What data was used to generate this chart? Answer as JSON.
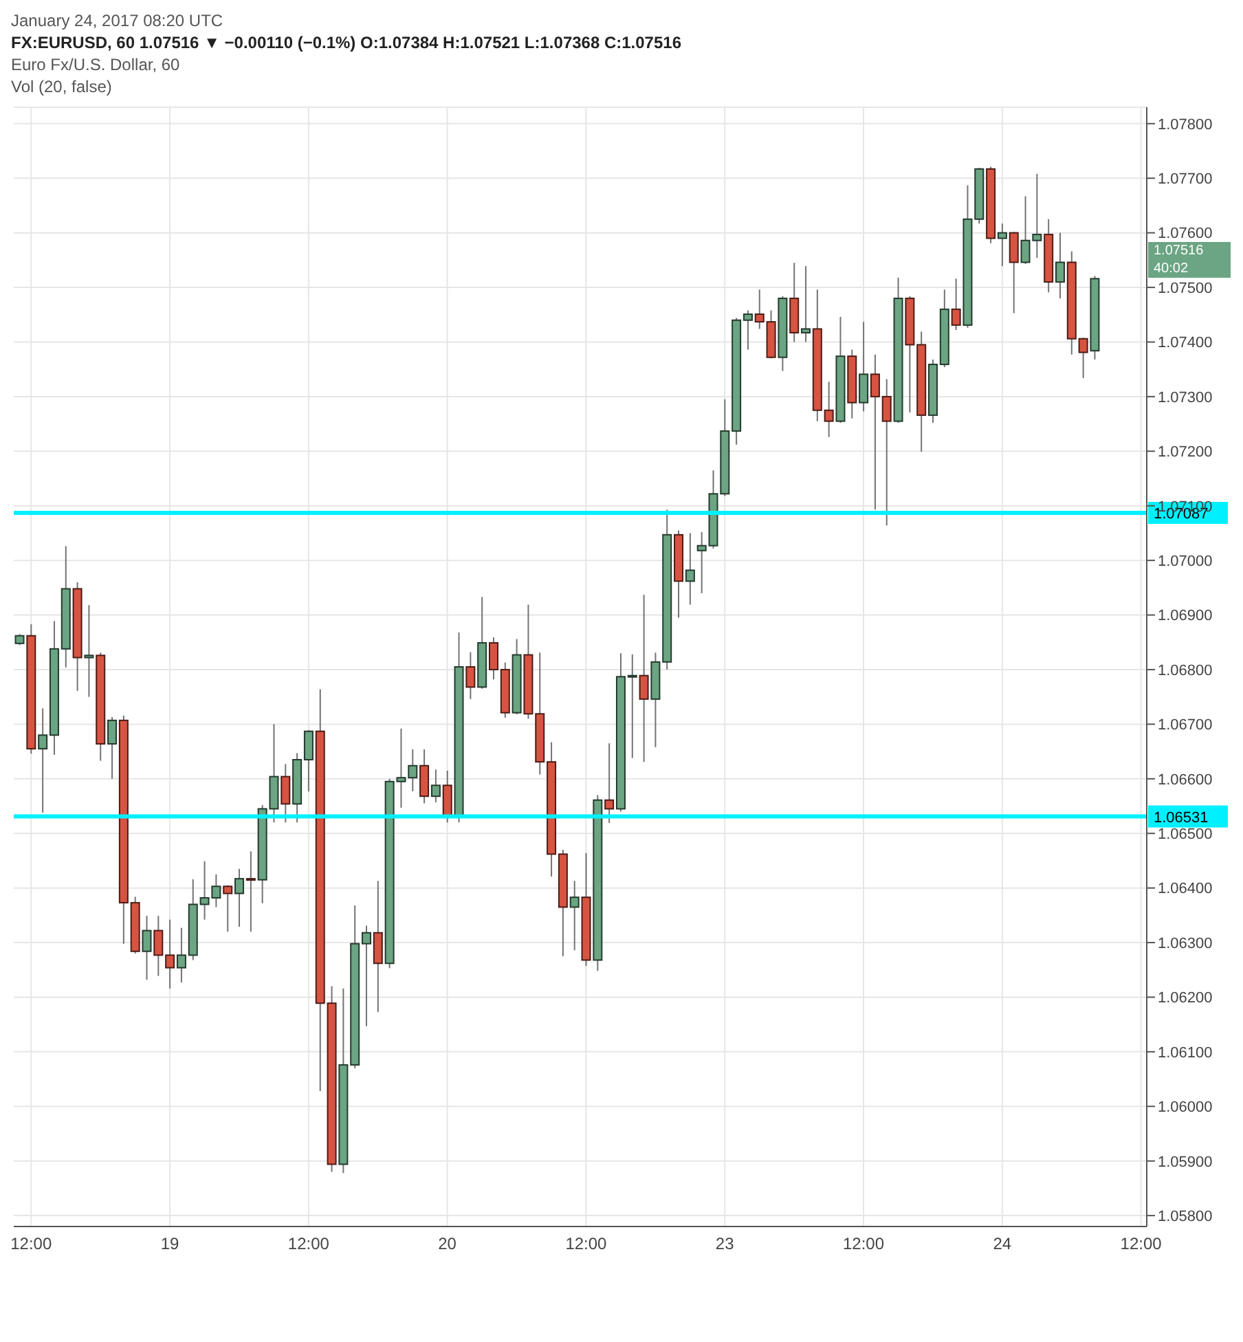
{
  "chart_data": {
    "type": "candlestick",
    "title": "FX:EURUSD, 60 1.07516 ▼ −0.00110 (−0.1%) O:1.07384 H:1.07521 L:1.07368 C:1.07516",
    "subtitle": "Euro Fx/U.S. Dollar, 60",
    "annotations": [
      "January 24, 2017 08:20 UTC",
      "Vol (20, false)",
      "1.07516",
      "40:02"
    ],
    "categories": [
      null,
      "12:00",
      null,
      null,
      null,
      null,
      null,
      null,
      null,
      null,
      null,
      null,
      null,
      "19",
      null,
      null,
      null,
      null,
      null,
      null,
      null,
      null,
      null,
      null,
      null,
      "12:00",
      null,
      null,
      null,
      null,
      null,
      null,
      null,
      null,
      null,
      null,
      null,
      "20",
      null,
      null,
      null,
      null,
      null,
      null,
      null,
      null,
      null,
      null,
      null,
      "12:00",
      null,
      null,
      null,
      null,
      null,
      null,
      null,
      null,
      null,
      null,
      null,
      "23",
      null,
      null,
      null,
      null,
      null,
      null,
      null,
      null,
      null,
      null,
      null,
      "12:00",
      null,
      null,
      null,
      null,
      null,
      null,
      null,
      null,
      null,
      null,
      null,
      "24",
      null,
      null,
      null,
      null,
      null,
      null,
      null,
      null,
      null,
      null,
      null,
      "12:00"
    ],
    "ohlc": [
      [
        1.06848,
        1.06865,
        1.06845,
        1.06862
      ],
      [
        1.06862,
        1.06883,
        1.06646,
        1.06655
      ],
      [
        1.06655,
        1.06729,
        1.06538,
        1.0668
      ],
      [
        1.0668,
        1.06889,
        1.06644,
        1.06838
      ],
      [
        1.06838,
        1.07026,
        1.06804,
        1.06948
      ],
      [
        1.06948,
        1.0696,
        1.06761,
        1.06822
      ],
      [
        1.06822,
        1.06918,
        1.0675,
        1.06826
      ],
      [
        1.06826,
        1.06831,
        1.06633,
        1.06664
      ],
      [
        1.06664,
        1.06713,
        1.066,
        1.06707
      ],
      [
        1.06707,
        1.06716,
        1.06298,
        1.06373
      ],
      [
        1.06373,
        1.06384,
        1.0628,
        1.06284
      ],
      [
        1.06284,
        1.06349,
        1.06232,
        1.06322
      ],
      [
        1.06322,
        1.06349,
        1.06239,
        1.06277
      ],
      [
        1.06277,
        1.06342,
        1.06216,
        1.06254
      ],
      [
        1.06254,
        1.06327,
        1.06227,
        1.06277
      ],
      [
        1.06277,
        1.06416,
        1.06268,
        1.0637
      ],
      [
        1.0637,
        1.06449,
        1.06342,
        1.06382
      ],
      [
        1.06382,
        1.06425,
        1.06365,
        1.06403
      ],
      [
        1.06403,
        1.06405,
        1.0632,
        1.0639
      ],
      [
        1.0639,
        1.06435,
        1.06329,
        1.06417
      ],
      [
        1.06417,
        1.06467,
        1.0632,
        1.06415
      ],
      [
        1.06415,
        1.06552,
        1.06372,
        1.06545
      ],
      [
        1.06545,
        1.067,
        1.0652,
        1.06604
      ],
      [
        1.06604,
        1.06627,
        1.0652,
        1.06554
      ],
      [
        1.06554,
        1.06647,
        1.0652,
        1.06635
      ],
      [
        1.06635,
        1.06689,
        1.06577,
        1.06687
      ],
      [
        1.06687,
        1.06764,
        1.06028,
        1.06189
      ],
      [
        1.06189,
        1.0622,
        1.0588,
        1.05894
      ],
      [
        1.05894,
        1.06216,
        1.05878,
        1.06076
      ],
      [
        1.06076,
        1.06368,
        1.0607,
        1.06298
      ],
      [
        1.06298,
        1.06331,
        1.06147,
        1.06318
      ],
      [
        1.06318,
        1.06413,
        1.06173,
        1.06262
      ],
      [
        1.06262,
        1.066,
        1.06253,
        1.06595
      ],
      [
        1.06595,
        1.06692,
        1.06547,
        1.06602
      ],
      [
        1.06602,
        1.06654,
        1.06577,
        1.06624
      ],
      [
        1.06624,
        1.06654,
        1.06555,
        1.06568
      ],
      [
        1.06568,
        1.06617,
        1.06557,
        1.06588
      ],
      [
        1.06588,
        1.06615,
        1.0652,
        1.06532
      ],
      [
        1.06532,
        1.06868,
        1.0652,
        1.06805
      ],
      [
        1.06805,
        1.06832,
        1.06746,
        1.06768
      ],
      [
        1.06768,
        1.06933,
        1.06765,
        1.06849
      ],
      [
        1.06849,
        1.06859,
        1.06782,
        1.068
      ],
      [
        1.068,
        1.06813,
        1.06712,
        1.06721
      ],
      [
        1.06721,
        1.06856,
        1.06718,
        1.06827
      ],
      [
        1.06827,
        1.06919,
        1.0671,
        1.06719
      ],
      [
        1.06719,
        1.06831,
        1.06608,
        1.06631
      ],
      [
        1.06631,
        1.06667,
        1.06421,
        1.06462
      ],
      [
        1.06462,
        1.0647,
        1.06275,
        1.06365
      ],
      [
        1.06365,
        1.06413,
        1.06286,
        1.06383
      ],
      [
        1.06383,
        1.06464,
        1.06257,
        1.06268
      ],
      [
        1.06268,
        1.0657,
        1.06248,
        1.06561
      ],
      [
        1.06561,
        1.06665,
        1.06519,
        1.06545
      ],
      [
        1.06545,
        1.0683,
        1.0654,
        1.06787
      ],
      [
        1.06787,
        1.06828,
        1.06638,
        1.06789
      ],
      [
        1.06789,
        1.06937,
        1.06631,
        1.06746
      ],
      [
        1.06746,
        1.06831,
        1.06658,
        1.06814
      ],
      [
        1.06814,
        1.07093,
        1.068,
        1.07047
      ],
      [
        1.07047,
        1.07055,
        1.06895,
        1.06962
      ],
      [
        1.06962,
        1.0705,
        1.06919,
        1.06982
      ],
      [
        1.07018,
        1.07052,
        1.0694,
        1.07027
      ],
      [
        1.07027,
        1.07165,
        1.07022,
        1.07122
      ],
      [
        1.07122,
        1.07295,
        1.07118,
        1.07237
      ],
      [
        1.07237,
        1.07444,
        1.07212,
        1.0744
      ],
      [
        1.0744,
        1.07458,
        1.07386,
        1.07451
      ],
      [
        1.07451,
        1.07496,
        1.07424,
        1.07437
      ],
      [
        1.07437,
        1.07458,
        1.0737,
        1.07372
      ],
      [
        1.07372,
        1.07484,
        1.07347,
        1.0748
      ],
      [
        1.0748,
        1.07545,
        1.074,
        1.07417
      ],
      [
        1.07417,
        1.07539,
        1.074,
        1.07424
      ],
      [
        1.07424,
        1.07496,
        1.07255,
        1.07275
      ],
      [
        1.07275,
        1.07327,
        1.07226,
        1.07255
      ],
      [
        1.07255,
        1.07446,
        1.07252,
        1.07374
      ],
      [
        1.07374,
        1.07386,
        1.0726,
        1.07289
      ],
      [
        1.07289,
        1.07437,
        1.07273,
        1.07341
      ],
      [
        1.07341,
        1.07377,
        1.07093,
        1.073
      ],
      [
        1.073,
        1.07332,
        1.07064,
        1.07255
      ],
      [
        1.07255,
        1.07518,
        1.07252,
        1.0748
      ],
      [
        1.0748,
        1.07484,
        1.07271,
        1.07395
      ],
      [
        1.07395,
        1.07419,
        1.07199,
        1.07266
      ],
      [
        1.07266,
        1.07368,
        1.07252,
        1.07359
      ],
      [
        1.07359,
        1.07496,
        1.07354,
        1.0746
      ],
      [
        1.0746,
        1.07516,
        1.07422,
        1.07431
      ],
      [
        1.07431,
        1.07687,
        1.07426,
        1.07625
      ],
      [
        1.07625,
        1.07719,
        1.07617,
        1.07717
      ],
      [
        1.07717,
        1.07721,
        1.07581,
        1.0759
      ],
      [
        1.0759,
        1.07617,
        1.07539,
        1.076
      ],
      [
        1.076,
        1.07602,
        1.07453,
        1.07546
      ],
      [
        1.07546,
        1.07667,
        1.07543,
        1.07586
      ],
      [
        1.07586,
        1.07708,
        1.07554,
        1.07597
      ],
      [
        1.07597,
        1.07625,
        1.07491,
        1.0751
      ],
      [
        1.0751,
        1.076,
        1.0748,
        1.07546
      ],
      [
        1.07546,
        1.07566,
        1.07377,
        1.07406
      ],
      [
        1.07406,
        1.07408,
        1.07334,
        1.07381
      ],
      [
        1.07384,
        1.07521,
        1.07368,
        1.07516
      ],
      null,
      null,
      null,
      null
    ],
    "colors": [
      "#6ba583",
      "#d75442",
      "#6ba583",
      "#6ba583",
      "#6ba583",
      "#d75442",
      "#6ba583",
      "#d75442",
      "#6ba583",
      "#d75442",
      "#d75442",
      "#6ba583",
      "#d75442",
      "#d75442",
      "#6ba583",
      "#6ba583",
      "#6ba583",
      "#6ba583",
      "#d75442",
      "#6ba583",
      "#d75442",
      "#6ba583",
      "#6ba583",
      "#d75442",
      "#6ba583",
      "#6ba583",
      "#d75442",
      "#d75442",
      "#6ba583",
      "#6ba583",
      "#6ba583",
      "#d75442",
      "#6ba583",
      "#6ba583",
      "#6ba583",
      "#d75442",
      "#6ba583",
      "#d75442",
      "#6ba583",
      "#d75442",
      "#6ba583",
      "#d75442",
      "#d75442",
      "#6ba583",
      "#d75442",
      "#d75442",
      "#d75442",
      "#d75442",
      "#6ba583",
      "#d75442",
      "#6ba583",
      "#d75442",
      "#6ba583",
      "#6ba583",
      "#d75442",
      "#6ba583",
      "#6ba583",
      "#d75442",
      "#6ba583",
      "#6ba583",
      "#6ba583",
      "#6ba583",
      "#6ba583",
      "#6ba583",
      "#d75442",
      "#d75442",
      "#6ba583",
      "#d75442",
      "#6ba583",
      "#d75442",
      "#d75442",
      "#6ba583",
      "#d75442",
      "#6ba583",
      "#d75442",
      "#d75442",
      "#6ba583",
      "#d75442",
      "#d75442",
      "#6ba583",
      "#6ba583",
      "#d75442",
      "#6ba583",
      "#6ba583",
      "#d75442",
      "#6ba583",
      "#d75442",
      "#6ba583",
      "#6ba583",
      "#d75442",
      "#6ba583",
      "#d75442",
      "#d75442",
      "#6ba583",
      null,
      null,
      null,
      null
    ],
    "ylim": [
      1.0578,
      1.0783
    ],
    "yticks": [
      {
        "value": 1.058,
        "label": "1.05800"
      },
      {
        "value": 1.059,
        "label": "1.05900"
      },
      {
        "value": 1.06,
        "label": "1.06000"
      },
      {
        "value": 1.061,
        "label": "1.06100"
      },
      {
        "value": 1.062,
        "label": "1.06200"
      },
      {
        "value": 1.063,
        "label": "1.06300"
      },
      {
        "value": 1.064,
        "label": "1.06400"
      },
      {
        "value": 1.065,
        "label": "1.06500"
      },
      {
        "value": 1.066,
        "label": "1.06600"
      },
      {
        "value": 1.067,
        "label": "1.06700"
      },
      {
        "value": 1.068,
        "label": "1.06800"
      },
      {
        "value": 1.069,
        "label": "1.06900"
      },
      {
        "value": 1.07,
        "label": "1.07000"
      },
      {
        "value": 1.071,
        "label": "1.07100"
      },
      {
        "value": 1.072,
        "label": "1.07200"
      },
      {
        "value": 1.073,
        "label": "1.07300"
      },
      {
        "value": 1.074,
        "label": "1.07400"
      },
      {
        "value": 1.075,
        "label": "1.07500"
      },
      {
        "value": 1.076,
        "label": "1.07600"
      },
      {
        "value": 1.077,
        "label": "1.07700"
      },
      {
        "value": 1.078,
        "label": "1.07800"
      }
    ],
    "ref_lines": [
      {
        "axis": "y",
        "value": 1.07087,
        "label": "1.07087",
        "color": "#00f0ff"
      },
      {
        "axis": "y",
        "value": 1.06531,
        "label": "1.06531",
        "color": "#00f0ff"
      }
    ],
    "grid": true
  }
}
